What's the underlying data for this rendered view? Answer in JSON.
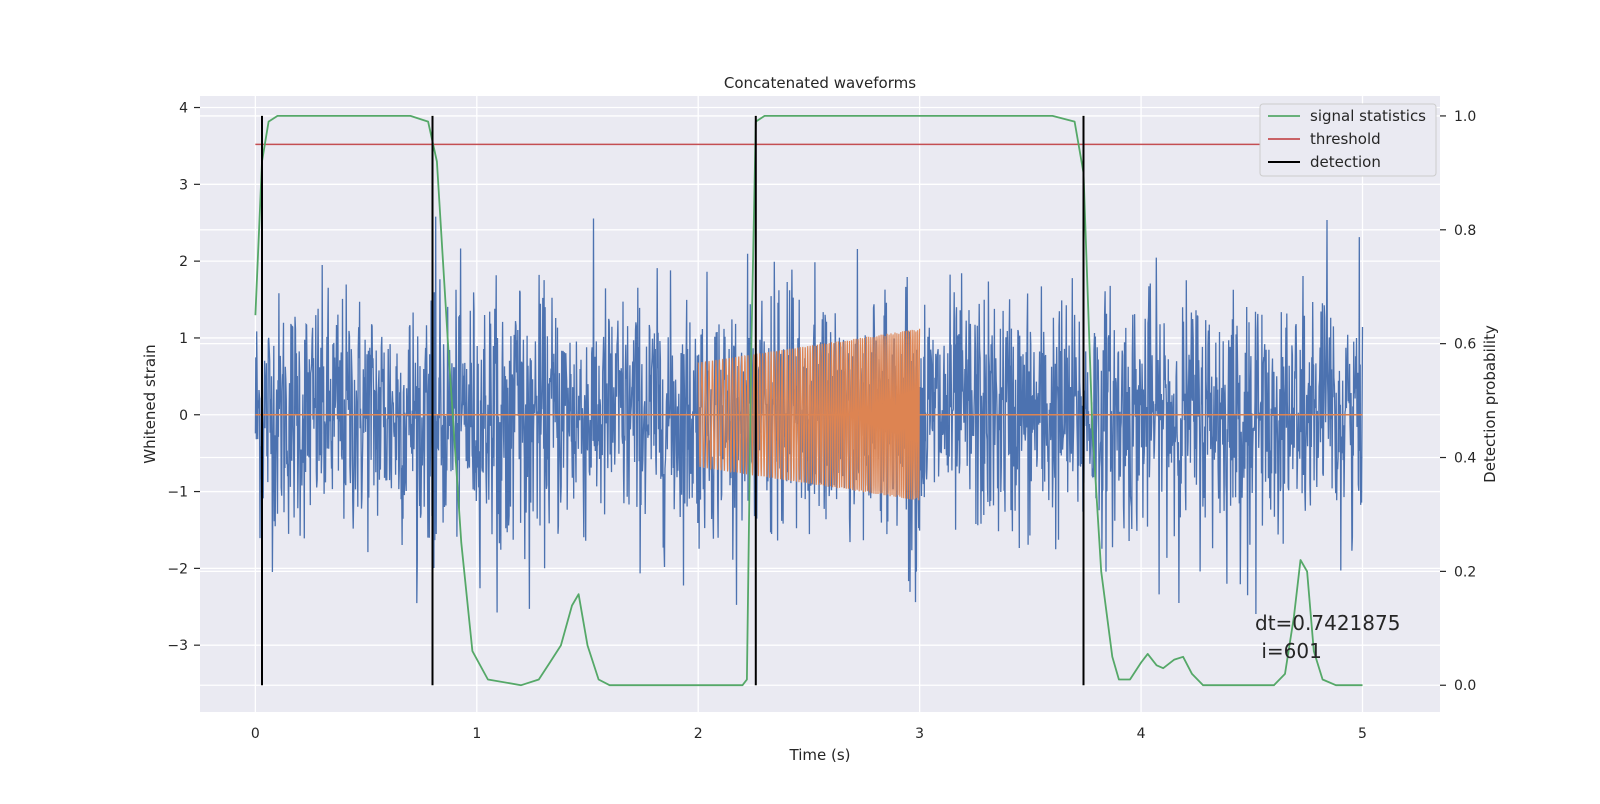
{
  "chart_data": {
    "type": "line",
    "title": "Concatenated waveforms",
    "xlabel": "Time (s)",
    "ylabel_left": "Whitened strain",
    "ylabel_right": "Detection probability",
    "xlim": [
      -0.25,
      5.35
    ],
    "ylim_left": [
      -3.87,
      4.15
    ],
    "ylim_right": [
      -0.047,
      1.035
    ],
    "x_ticks": [
      0,
      1,
      2,
      3,
      4,
      5
    ],
    "y_ticks_left": [
      -3,
      -2,
      -1,
      0,
      1,
      2,
      3,
      4
    ],
    "y_ticks_right": [
      "0.0",
      "0.2",
      "0.4",
      "0.6",
      "0.8",
      "1.0"
    ],
    "grid": true,
    "legend_position": "top-right",
    "colors": {
      "noise": "#4c72b0",
      "injection": "#dd8452",
      "signal_statistics": "#55a868",
      "threshold": "#c44e52",
      "detection": "#000000",
      "background": "#eaeaf2",
      "grid": "#ffffff"
    },
    "series": [
      {
        "name": "",
        "axis": "left",
        "role": "noise",
        "x_range": [
          0.0,
          5.0
        ],
        "typical_amplitude": [
          -1.0,
          1.0
        ],
        "max": 2.6,
        "min": -2.6
      },
      {
        "name": "",
        "axis": "left",
        "role": "injection",
        "x_range": [
          2.0,
          3.0
        ],
        "amplitude": [
          0.68,
          1.12
        ],
        "baseline": 0.0
      },
      {
        "name": "signal statistics",
        "axis": "right",
        "x": [
          0.0,
          0.03,
          0.06,
          0.1,
          0.15,
          0.7,
          0.78,
          0.82,
          0.87,
          0.93,
          0.98,
          1.05,
          1.2,
          1.28,
          1.33,
          1.38,
          1.43,
          1.46,
          1.5,
          1.55,
          1.6,
          2.2,
          2.22,
          2.24,
          2.26,
          2.3,
          2.5,
          3.6,
          3.7,
          3.74,
          3.78,
          3.82,
          3.87,
          3.9,
          3.95,
          4.0,
          4.03,
          4.07,
          4.1,
          4.15,
          4.19,
          4.23,
          4.28,
          4.6,
          4.65,
          4.69,
          4.72,
          4.75,
          4.78,
          4.82,
          4.88,
          5.0
        ],
        "y": [
          0.65,
          0.92,
          0.99,
          1.0,
          1.0,
          1.0,
          0.99,
          0.92,
          0.6,
          0.25,
          0.06,
          0.01,
          0.0,
          0.01,
          0.04,
          0.07,
          0.14,
          0.16,
          0.07,
          0.01,
          0.0,
          0.0,
          0.01,
          0.6,
          0.99,
          1.0,
          1.0,
          1.0,
          0.99,
          0.9,
          0.45,
          0.2,
          0.05,
          0.01,
          0.01,
          0.04,
          0.055,
          0.035,
          0.03,
          0.045,
          0.05,
          0.02,
          0.0,
          0.0,
          0.02,
          0.12,
          0.22,
          0.2,
          0.06,
          0.01,
          0.0,
          0.0
        ]
      },
      {
        "name": "threshold",
        "axis": "right",
        "x": [
          0.0,
          5.0
        ],
        "y": [
          0.95,
          0.95
        ]
      },
      {
        "name": "detection",
        "axis": "right",
        "x": [
          0.03,
          0.8,
          2.26,
          3.74
        ],
        "y_range": [
          0.0,
          1.0
        ]
      }
    ],
    "annotations": {
      "dt": "dt=0.7421875",
      "i": " i=601"
    }
  }
}
